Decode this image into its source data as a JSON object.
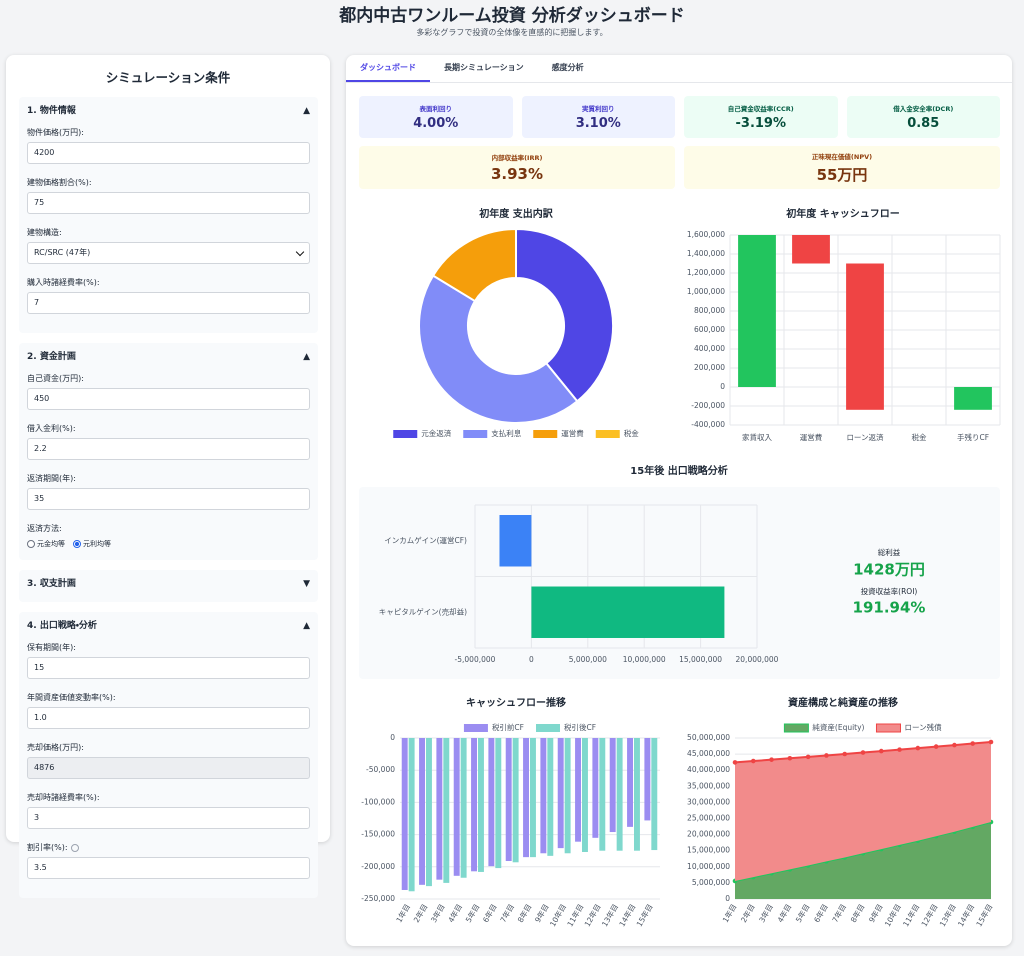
{
  "header": {
    "title": "都内中古ワンルーム投資 分析ダッシュボード",
    "subtitle": "多彩なグラフで投資の全体像を直感的に把握します。"
  },
  "sidebar": {
    "title": "シミュレーション条件",
    "sections": [
      {
        "title": "1. 物件情報",
        "toggle": "▲",
        "fields": [
          {
            "label": "物件価格(万円):",
            "value": "4200"
          },
          {
            "label": "建物価格割合(%):",
            "value": "75"
          },
          {
            "label": "建物構造:",
            "value": "RC/SRC (47年)",
            "select": true
          },
          {
            "label": "購入時諸経費率(%):",
            "value": "7"
          }
        ]
      },
      {
        "title": "2. 資金計画",
        "toggle": "▲",
        "fields": [
          {
            "label": "自己資金(万円):",
            "value": "450"
          },
          {
            "label": "借入金利(%):",
            "value": "2.2"
          },
          {
            "label": "返済期間(年):",
            "value": "35"
          },
          {
            "label": "返済方法:",
            "options": [
              "元金均等",
              "元利均等"
            ],
            "selected": 1
          }
        ]
      },
      {
        "title": "3. 収支計画",
        "toggle": "▼",
        "collapsed": true
      },
      {
        "title": "4. 出口戦略・分析",
        "toggle": "▲",
        "fields": [
          {
            "label": "保有期間(年):",
            "value": "15"
          },
          {
            "label": "年間資産価値変動率(%):",
            "value": "1.0"
          },
          {
            "label": "売却価格(万円):",
            "value": "4876",
            "disabled": true
          },
          {
            "label": "売却時諸経費率(%):",
            "value": "3"
          },
          {
            "label": "割引率(%):",
            "value": "3.5",
            "info": true
          }
        ]
      }
    ]
  },
  "tabs": {
    "items": [
      "ダッシュボード",
      "長期シミュレーション",
      "感度分析"
    ],
    "active": 0
  },
  "kpis": [
    [
      {
        "label": "表面利回り",
        "value": "4.00%",
        "tone": "blue"
      },
      {
        "label": "実質利回り",
        "value": "3.10%",
        "tone": "blue"
      },
      {
        "label": "自己資金収益率(CCR)",
        "value": "-3.19%",
        "tone": "green"
      },
      {
        "label": "借入金安全率(DCR)",
        "value": "0.85",
        "tone": "green"
      }
    ],
    [
      {
        "label": "内部収益率(IRR)",
        "value": "3.93%",
        "tone": "yellow"
      },
      {
        "label": "正味現在価値(NPV)",
        "value": "55万円",
        "tone": "yellow"
      }
    ]
  ],
  "chart_data": [
    {
      "type": "donut",
      "title": "初年度 支出内訳",
      "categories": [
        "元金返済",
        "支払利息",
        "運営費",
        "税金"
      ],
      "values": [
        720000,
        820000,
        300000,
        0
      ],
      "colors": [
        "#4f46e5",
        "#818cf8",
        "#f59e0b",
        "#fbbf24"
      ]
    },
    {
      "type": "waterfall",
      "title": "初年度 キャッシュフロー",
      "categories": [
        "家賃収入",
        "運営費",
        "ローン返済",
        "税金",
        "手残りCF"
      ],
      "values": [
        1600000,
        -300000,
        -1540000,
        0,
        -240000
      ],
      "measures": [
        "absolute",
        "relative",
        "relative",
        "relative",
        "total"
      ],
      "colors": [
        "#22c55e",
        "#ef4444",
        "#ef4444",
        "#ef4444",
        "#22c55e"
      ],
      "ylim": [
        -400000,
        1600000
      ],
      "yticks": [
        {
          "value": -400000,
          "label": "-400,000"
        },
        {
          "value": -200000,
          "label": "-200,000"
        },
        0,
        {
          "value": 200000,
          "label": "200,000"
        },
        {
          "value": 400000,
          "label": "400,000"
        },
        {
          "value": 600000,
          "label": "600,000"
        },
        {
          "value": 800000,
          "label": "800,000"
        },
        {
          "value": 1000000,
          "label": "1,000,000"
        },
        {
          "value": 1200000,
          "label": "1,200,000"
        },
        {
          "value": 1400000,
          "label": "1,400,000"
        },
        {
          "value": 1600000,
          "label": "1,600,000"
        }
      ],
      "grid": true
    },
    {
      "type": "bar",
      "orientation": "horizontal",
      "title": "15年後 出口戦略分析",
      "categories": [
        "インカムゲイン(運営CF)",
        "キャピタルゲイン(売却益)"
      ],
      "values": [
        -2830000,
        17110000
      ],
      "colors": [
        "#3b82f6",
        "#10b981"
      ],
      "xlim": [
        -5000000,
        20000000
      ],
      "xticks": [
        {
          "value": -5000000,
          "label": "-5,000,000"
        },
        0,
        {
          "value": 5000000,
          "label": "5,000,000"
        },
        {
          "value": 10000000,
          "label": "10,000,000"
        },
        {
          "value": 15000000,
          "label": "15,000,000"
        },
        {
          "value": 20000000,
          "label": "20,000,000"
        }
      ],
      "grid": true,
      "summary": [
        {
          "label": "総利益",
          "value": "1428万円"
        },
        {
          "label": "投資収益率(ROI)",
          "value": "191.94%"
        }
      ]
    },
    {
      "type": "bar",
      "title": "キャッシュフロー推移",
      "categories": [
        "1年目",
        "2年目",
        "3年目",
        "4年目",
        "5年目",
        "6年目",
        "7年目",
        "8年目",
        "9年目",
        "10年目",
        "11年目",
        "12年目",
        "13年目",
        "14年目",
        "15年目"
      ],
      "series": [
        {
          "name": "税引前CF",
          "color": "#9b8df1",
          "values": [
            -236000,
            -228000,
            -220000,
            -214000,
            -207000,
            -199000,
            -191000,
            -185000,
            -179000,
            -171000,
            -161000,
            -155000,
            -146000,
            -138000,
            -128000
          ]
        },
        {
          "name": "税引後CF",
          "color": "#7fd8cd",
          "values": [
            -238000,
            -230000,
            -225000,
            -217000,
            -208000,
            -202000,
            -193000,
            -185000,
            -183000,
            -179000,
            -177000,
            -175000,
            -175000,
            -175000,
            -174000
          ]
        }
      ],
      "ylim": [
        -250000,
        0
      ],
      "yticks": [
        {
          "value": -250000,
          "label": "-250,000"
        },
        {
          "value": -200000,
          "label": "-200,000"
        },
        {
          "value": -150000,
          "label": "-150,000"
        },
        {
          "value": -100000,
          "label": "-100,000"
        },
        {
          "value": -50000,
          "label": "-50,000"
        },
        0
      ],
      "grid": true
    },
    {
      "type": "area",
      "stacked": true,
      "title": "資産構成と純資産の推移",
      "categories": [
        "1年目",
        "2年目",
        "3年目",
        "4年目",
        "5年目",
        "6年目",
        "7年目",
        "8年目",
        "9年目",
        "10年目",
        "11年目",
        "12年目",
        "13年目",
        "14年目",
        "15年目"
      ],
      "series": [
        {
          "name": "純資産(Equity)",
          "color": "#22c55e",
          "fill": "#63a863",
          "values": [
            5600000,
            6800000,
            8000000,
            9200000,
            10400000,
            11700000,
            12900000,
            14200000,
            15500000,
            16800000,
            18100000,
            19500000,
            20900000,
            22400000,
            23900000
          ]
        },
        {
          "name": "ローン残債",
          "color": "#ef4444",
          "fill": "#f28b8b",
          "values": [
            36820000,
            36040000,
            35270000,
            34510000,
            33740000,
            32880000,
            32130000,
            31280000,
            30430000,
            29590000,
            28760000,
            27830000,
            26900000,
            25880000,
            24860000
          ]
        }
      ],
      "ylim": [
        0,
        50000000
      ],
      "yticks": [
        0,
        {
          "value": 5000000,
          "label": "5,000,000"
        },
        {
          "value": 10000000,
          "label": "10,000,000"
        },
        {
          "value": 15000000,
          "label": "15,000,000"
        },
        {
          "value": 20000000,
          "label": "20,000,000"
        },
        {
          "value": 25000000,
          "label": "25,000,000"
        },
        {
          "value": 30000000,
          "label": "30,000,000"
        },
        {
          "value": 35000000,
          "label": "35,000,000"
        },
        {
          "value": 40000000,
          "label": "40,000,000"
        },
        {
          "value": 45000000,
          "label": "45,000,000"
        },
        {
          "value": 50000000,
          "label": "50,000,000"
        }
      ],
      "grid": true
    }
  ]
}
